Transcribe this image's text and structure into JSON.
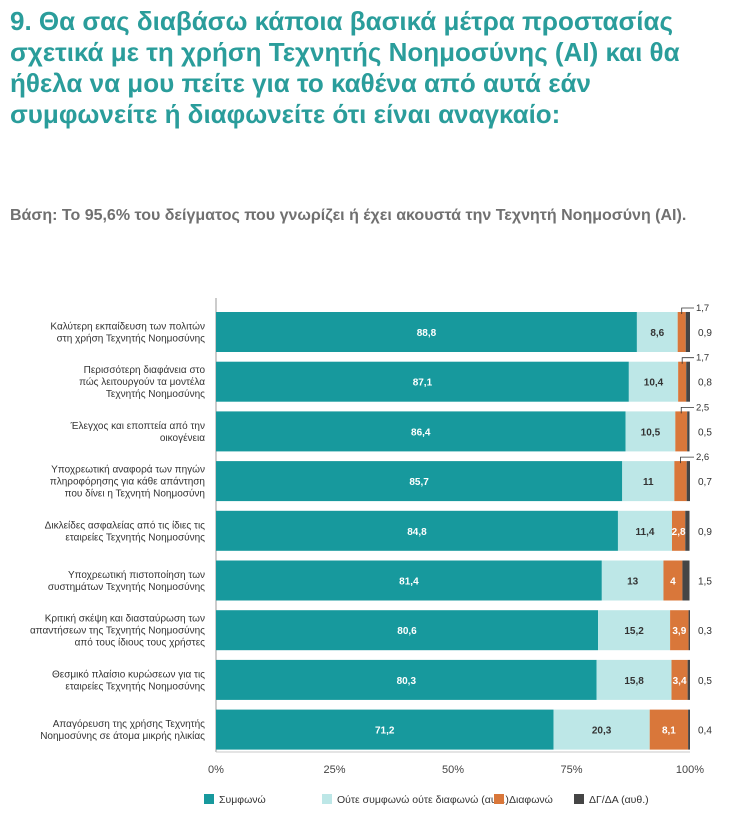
{
  "question": {
    "title": "9. Θα σας διαβάσω κάποια βασικά μέτρα προστασίας σχετικά με τη χρήση Τεχνητής Νοημοσύνης (AI) και θα ήθελα να μου πείτε για το καθένα από αυτά εάν συμφωνείτε ή διαφωνείτε ότι είναι αναγκαίο:",
    "base": "Βάση: Το 95,6% του δείγματος που γνωρίζει ή έχει ακουστά την Τεχνητή Νοημοσύνη (AI)."
  },
  "colors": {
    "agree": "#17999d",
    "neutral": "#bde7e7",
    "disagree": "#d9773a",
    "dk": "#454545",
    "title": "#2a9d9b"
  },
  "chart_data": {
    "type": "bar",
    "orientation": "horizontal",
    "stacked": true,
    "xlim": [
      0,
      100
    ],
    "x_ticks": [
      "0%",
      "25%",
      "50%",
      "75%",
      "100%"
    ],
    "legend_position": "bottom",
    "categories": [
      [
        "Καλύτερη εκπαίδευση των πολιτών",
        "στη χρήση Τεχνητής Νοημοσύνης"
      ],
      [
        "Περισσότερη διαφάνεια στο",
        "πώς λειτουργούν τα μοντέλα",
        "Τεχνητής Νοημοσύνης"
      ],
      [
        "Έλεγχος και εποπτεία από την",
        "οικογένεια"
      ],
      [
        "Υποχρεωτική αναφορά των πηγών",
        "πληροφόρησης για κάθε απάντηση",
        "που δίνει η Τεχνητή Νοημοσύνη"
      ],
      [
        "Δικλείδες ασφαλείας από τις ίδιες τις",
        "εταιρείες Τεχνητής Νοημοσύνης"
      ],
      [
        "Υποχρεωτική πιστοποίηση των",
        "συστημάτων Τεχνητής Νοημοσύνης"
      ],
      [
        "Κριτική σκέψη και διασταύρωση των",
        "απαντήσεων της Τεχνητής Νοημοσύνης",
        "από τους ίδιους τους χρήστες"
      ],
      [
        "Θεσμικό πλαίσιο κυρώσεων για τις",
        "εταιρείες Τεχνητής Νοημοσύνης"
      ],
      [
        "Απαγόρευση της χρήσης Τεχνητής",
        "Νοημοσύνης σε άτομα μικρής ηλικίας"
      ]
    ],
    "series": [
      {
        "name": "Συμφωνώ",
        "values": [
          88.8,
          87.1,
          86.4,
          85.7,
          84.8,
          81.4,
          80.6,
          80.3,
          71.2
        ],
        "labels": [
          "88,8",
          "87,1",
          "86,4",
          "85,7",
          "84,8",
          "81,4",
          "80,6",
          "80,3",
          "71,2"
        ]
      },
      {
        "name": "Ούτε συμφωνώ ούτε διαφωνώ (αυθ.)",
        "values": [
          8.6,
          10.4,
          10.5,
          11,
          11.4,
          13,
          15.2,
          15.8,
          20.3
        ],
        "labels": [
          "8,6",
          "10,4",
          "10,5",
          "11",
          "11,4",
          "13",
          "15,2",
          "15,8",
          "20,3"
        ]
      },
      {
        "name": "Διαφωνώ",
        "values": [
          1.7,
          1.7,
          2.5,
          2.6,
          2.8,
          4,
          3.9,
          3.4,
          8.1
        ],
        "labels": [
          "1,7",
          "1,7",
          "2,5",
          "2,6",
          "2,8",
          "4",
          "3,9",
          "3,4",
          "8,1"
        ]
      },
      {
        "name": "ΔΓ/ΔΑ (αυθ.)",
        "values": [
          0.9,
          0.8,
          0.5,
          0.7,
          0.9,
          1.5,
          0.3,
          0.5,
          0.4
        ],
        "labels": [
          "0,9",
          "0,8",
          "0,5",
          "0,7",
          "0,9",
          "1,5",
          "0,3",
          "0,5",
          "0,4"
        ]
      }
    ]
  }
}
